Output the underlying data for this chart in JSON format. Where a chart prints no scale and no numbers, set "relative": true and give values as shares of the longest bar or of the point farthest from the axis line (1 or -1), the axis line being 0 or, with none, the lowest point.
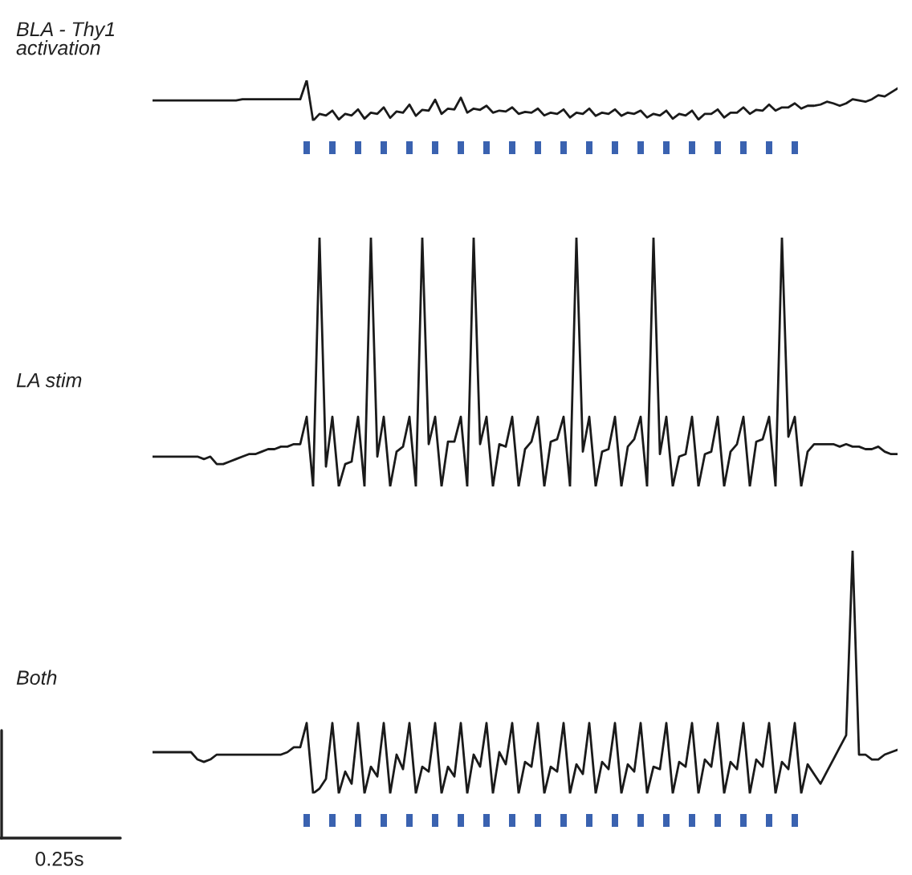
{
  "chart_data": [
    {
      "type": "line",
      "relative": true,
      "ylabel": "BLA - Thy1\nactivation",
      "categories": [
        null,
        null,
        null,
        null,
        null,
        null,
        null,
        null,
        null,
        null,
        null,
        null,
        null,
        null,
        null,
        null,
        null,
        null,
        null,
        null,
        null,
        null,
        null,
        null,
        null,
        null,
        null,
        null,
        null,
        null,
        null,
        null,
        null,
        null,
        null,
        null,
        null,
        null,
        null,
        null,
        null,
        null,
        null,
        null,
        null,
        null,
        null,
        null,
        null,
        null,
        null,
        null,
        null,
        null,
        null,
        null,
        null,
        null,
        null,
        null,
        null,
        null,
        null,
        null,
        null,
        null,
        null,
        null,
        null,
        null,
        null,
        null,
        null,
        null,
        null,
        null,
        null,
        null,
        null,
        null,
        null,
        null,
        null,
        null,
        null,
        null,
        null,
        null,
        null,
        null,
        null,
        null,
        null,
        null,
        null,
        null,
        null,
        null,
        null,
        null,
        null,
        null,
        null,
        null,
        null,
        null,
        null,
        null,
        null,
        null,
        null,
        null,
        null,
        null,
        null,
        null,
        null
      ],
      "series": [
        {
          "color": "#1a1a1a",
          "values": [
            0.5,
            0.5,
            0.5,
            0.5,
            0.5,
            0.5,
            0.5,
            0.5,
            0.5,
            0.5,
            0.5,
            0.5,
            0.5,
            0.5,
            0.53,
            0.53,
            0.53,
            0.53,
            0.53,
            0.53,
            0.53,
            0.53,
            0.53,
            0.53,
            1.0,
            0,
            0.17,
            0.13,
            0.25,
            0.03,
            0.17,
            0.13,
            0.28,
            0.05,
            0.2,
            0.17,
            0.33,
            0.07,
            0.23,
            0.2,
            0.4,
            0.12,
            0.27,
            0.25,
            0.52,
            0.17,
            0.3,
            0.28,
            0.57,
            0.2,
            0.3,
            0.27,
            0.37,
            0.2,
            0.25,
            0.23,
            0.33,
            0.17,
            0.22,
            0.2,
            0.3,
            0.13,
            0.2,
            0.17,
            0.28,
            0.08,
            0.2,
            0.17,
            0.3,
            0.12,
            0.2,
            0.17,
            0.28,
            0.12,
            0.2,
            0.17,
            0.25,
            0.08,
            0.17,
            0.13,
            0.25,
            0.05,
            0.17,
            0.13,
            0.25,
            0.03,
            0.17,
            0.17,
            0.28,
            0.08,
            0.2,
            0.2,
            0.33,
            0.17,
            0.27,
            0.25,
            0.4,
            0.25,
            0.33,
            0.33,
            0.43,
            0.3,
            0.37,
            0.37,
            0.4,
            0.47,
            0.43,
            0.37,
            0.43,
            0.53,
            0.5,
            0.47,
            0.53,
            0.63,
            0.6,
            0.7,
            0.8
          ]
        }
      ]
    },
    {
      "type": "line",
      "relative": true,
      "ylabel": "LA stim",
      "categories": [
        null,
        null,
        null,
        null,
        null,
        null,
        null,
        null,
        null,
        null,
        null,
        null,
        null,
        null,
        null,
        null,
        null,
        null,
        null,
        null,
        null,
        null,
        null,
        null,
        null,
        null,
        null,
        null,
        null,
        null,
        null,
        null,
        null,
        null,
        null,
        null,
        null,
        null,
        null,
        null,
        null,
        null,
        null,
        null,
        null,
        null,
        null,
        null,
        null,
        null,
        null,
        null,
        null,
        null,
        null,
        null,
        null,
        null,
        null,
        null,
        null,
        null,
        null,
        null,
        null,
        null,
        null,
        null,
        null,
        null,
        null,
        null,
        null,
        null,
        null,
        null,
        null,
        null,
        null,
        null,
        null,
        null,
        null,
        null,
        null,
        null,
        null,
        null,
        null,
        null,
        null,
        null,
        null,
        null,
        null,
        null,
        null,
        null,
        null,
        null,
        null,
        null,
        null,
        null,
        null,
        null,
        null,
        null,
        null,
        null,
        null,
        null,
        null,
        null,
        null,
        null,
        null
      ],
      "series": [
        {
          "color": "#1a1a1a",
          "values": [
            0.12,
            0.12,
            0.12,
            0.12,
            0.12,
            0.12,
            0.12,
            0.12,
            0.11,
            0.12,
            0.09,
            0.09,
            0.1,
            0.11,
            0.12,
            0.13,
            0.13,
            0.14,
            0.15,
            0.15,
            0.16,
            0.16,
            0.17,
            0.17,
            0.28,
            0,
            1.0,
            0.08,
            0.28,
            0,
            0.09,
            0.1,
            0.28,
            0,
            1.0,
            0.12,
            0.28,
            0,
            0.14,
            0.16,
            0.28,
            0,
            1.0,
            0.17,
            0.28,
            0,
            0.18,
            0.18,
            0.28,
            0,
            1.0,
            0.17,
            0.28,
            0,
            0.17,
            0.16,
            0.28,
            0,
            0.15,
            0.18,
            0.28,
            0,
            0.18,
            0.19,
            0.28,
            0,
            1.0,
            0.14,
            0.28,
            0,
            0.14,
            0.15,
            0.28,
            0,
            0.16,
            0.19,
            0.28,
            0,
            1.0,
            0.13,
            0.28,
            0,
            0.12,
            0.13,
            0.28,
            0,
            0.13,
            0.14,
            0.28,
            0,
            0.14,
            0.17,
            0.28,
            0,
            0.18,
            0.19,
            0.28,
            0,
            1.0,
            0.2,
            0.28,
            0,
            0.14,
            0.17,
            0.17,
            0.17,
            0.17,
            0.16,
            0.17,
            0.16,
            0.16,
            0.15,
            0.15,
            0.16,
            0.14,
            0.13,
            0.13
          ]
        }
      ]
    },
    {
      "type": "line",
      "relative": true,
      "ylabel": "Both",
      "annotations": [
        "0.25s"
      ],
      "categories": [
        null,
        null,
        null,
        null,
        null,
        null,
        null,
        null,
        null,
        null,
        null,
        null,
        null,
        null,
        null,
        null,
        null,
        null,
        null,
        null,
        null,
        null,
        null,
        null,
        null,
        null,
        null,
        null,
        null,
        null,
        null,
        null,
        null,
        null,
        null,
        null,
        null,
        null,
        null,
        null,
        null,
        null,
        null,
        null,
        null,
        null,
        null,
        null,
        null,
        null,
        null,
        null,
        null,
        null,
        null,
        null,
        null,
        null,
        null,
        null,
        null,
        null,
        null,
        null,
        null,
        null,
        null,
        null,
        null,
        null,
        null,
        null,
        null,
        null,
        null,
        null,
        null,
        null,
        null,
        null,
        null,
        null,
        null,
        null,
        null,
        null,
        null,
        null,
        null,
        null,
        null,
        null,
        null,
        null,
        null,
        null,
        null,
        null,
        null,
        null,
        null,
        null,
        null,
        null,
        null,
        null,
        null,
        null,
        null,
        null,
        null,
        null,
        null,
        null,
        null,
        null,
        null
      ],
      "series": [
        {
          "color": "#1a1a1a",
          "values": [
            0.17,
            0.17,
            0.17,
            0.17,
            0.17,
            0.17,
            0.17,
            0.14,
            0.13,
            0.14,
            0.16,
            0.16,
            0.16,
            0.16,
            0.16,
            0.16,
            0.16,
            0.16,
            0.16,
            0.16,
            0.16,
            0.17,
            0.19,
            0.19,
            0.29,
            0,
            0.02,
            0.06,
            0.29,
            0,
            0.09,
            0.04,
            0.29,
            0,
            0.11,
            0.07,
            0.29,
            0,
            0.16,
            0.1,
            0.29,
            0,
            0.11,
            0.09,
            0.29,
            0,
            0.11,
            0.07,
            0.29,
            0,
            0.16,
            0.11,
            0.29,
            0,
            0.17,
            0.12,
            0.29,
            0,
            0.13,
            0.11,
            0.29,
            0,
            0.11,
            0.09,
            0.29,
            0,
            0.12,
            0.08,
            0.29,
            0,
            0.13,
            0.1,
            0.29,
            0,
            0.12,
            0.09,
            0.29,
            0,
            0.11,
            0.1,
            0.29,
            0,
            0.13,
            0.11,
            0.29,
            0,
            0.14,
            0.11,
            0.29,
            0,
            0.13,
            0.1,
            0.29,
            0,
            0.14,
            0.11,
            0.29,
            0,
            0.13,
            0.1,
            0.29,
            0,
            0.12,
            0.08,
            0.04,
            0.09,
            0.14,
            0.19,
            0.24,
            1.0,
            0.16,
            0.16,
            0.14,
            0.14,
            0.16,
            0.17,
            0.18
          ]
        }
      ]
    }
  ]
}
